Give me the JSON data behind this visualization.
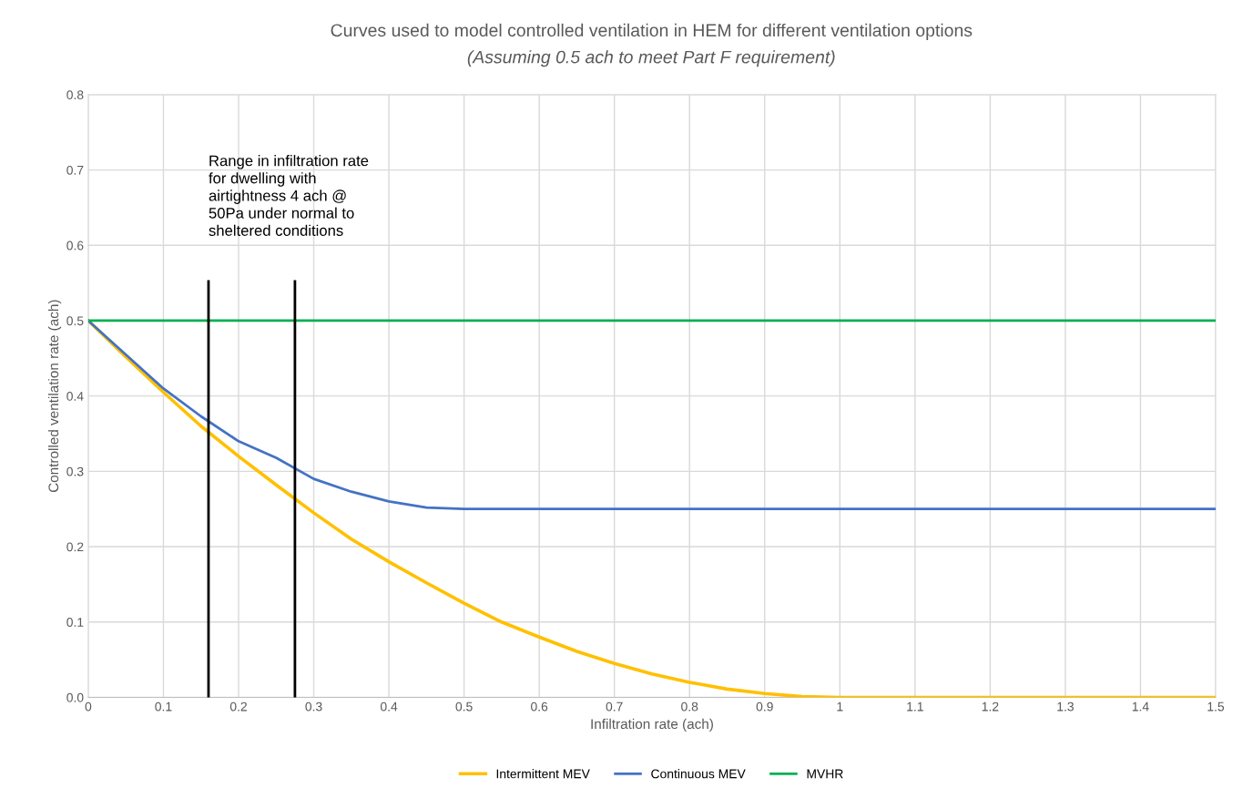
{
  "chart_data": {
    "type": "line",
    "title": "Curves used to model controlled ventilation in HEM for different ventilation options",
    "subtitle": "(Assuming 0.5 ach to meet Part F requirement)",
    "xlabel": "Infiltration rate (ach)",
    "ylabel": "Controlled ventilation rate (ach)",
    "x": [
      0,
      0.05,
      0.1,
      0.15,
      0.2,
      0.25,
      0.3,
      0.35,
      0.4,
      0.45,
      0.5,
      0.55,
      0.6,
      0.65,
      0.7,
      0.75,
      0.8,
      0.85,
      0.9,
      0.95,
      1.0,
      1.05,
      1.1,
      1.15,
      1.2,
      1.25,
      1.3,
      1.35,
      1.4,
      1.45,
      1.5
    ],
    "series": [
      {
        "name": "Intermittent MEV",
        "color": "#ffc000",
        "values": [
          0.5,
          0.452,
          0.405,
          0.36,
          0.32,
          0.282,
          0.245,
          0.21,
          0.18,
          0.152,
          0.125,
          0.1,
          0.08,
          0.061,
          0.045,
          0.031,
          0.02,
          0.011,
          0.005,
          0.001,
          0,
          0,
          0,
          0,
          0,
          0,
          0,
          0,
          0,
          0,
          0
        ]
      },
      {
        "name": "Continuous MEV",
        "color": "#4472c4",
        "values": [
          0.5,
          0.455,
          0.41,
          0.373,
          0.34,
          0.318,
          0.29,
          0.273,
          0.26,
          0.252,
          0.25,
          0.25,
          0.25,
          0.25,
          0.25,
          0.25,
          0.25,
          0.25,
          0.25,
          0.25,
          0.25,
          0.25,
          0.25,
          0.25,
          0.25,
          0.25,
          0.25,
          0.25,
          0.25,
          0.25,
          0.25
        ]
      },
      {
        "name": "MVHR",
        "color": "#00b050",
        "x": [
          0,
          1.5
        ],
        "values": [
          0.5,
          0.5
        ]
      }
    ],
    "xlim": [
      0,
      1.5
    ],
    "xticks": [
      0,
      0.1,
      0.2,
      0.3,
      0.4,
      0.5,
      0.6,
      0.7,
      0.8,
      0.9,
      {
        "value": 1.0,
        "label": "1"
      },
      1.1,
      1.2,
      1.3,
      1.4,
      1.5
    ],
    "ylim": [
      0,
      0.8
    ],
    "yticks": [
      {
        "value": 0,
        "label": "0.0"
      },
      0.1,
      0.2,
      0.3,
      0.4,
      0.5,
      0.6,
      0.7,
      0.8
    ],
    "ref_lines": [
      {
        "axis": "x",
        "value": 0.16,
        "label": null,
        "color": "#000000"
      },
      {
        "axis": "x",
        "value": 0.275,
        "label": null,
        "color": "#000000"
      }
    ],
    "annotations": [
      "Range in infiltration rate\nfor dwelling with\nairtightness 4 ach @\n50Pa under normal to\nsheltered conditions"
    ],
    "grid": true,
    "legend": "bottom",
    "marker": "none",
    "line_style": "solid"
  }
}
